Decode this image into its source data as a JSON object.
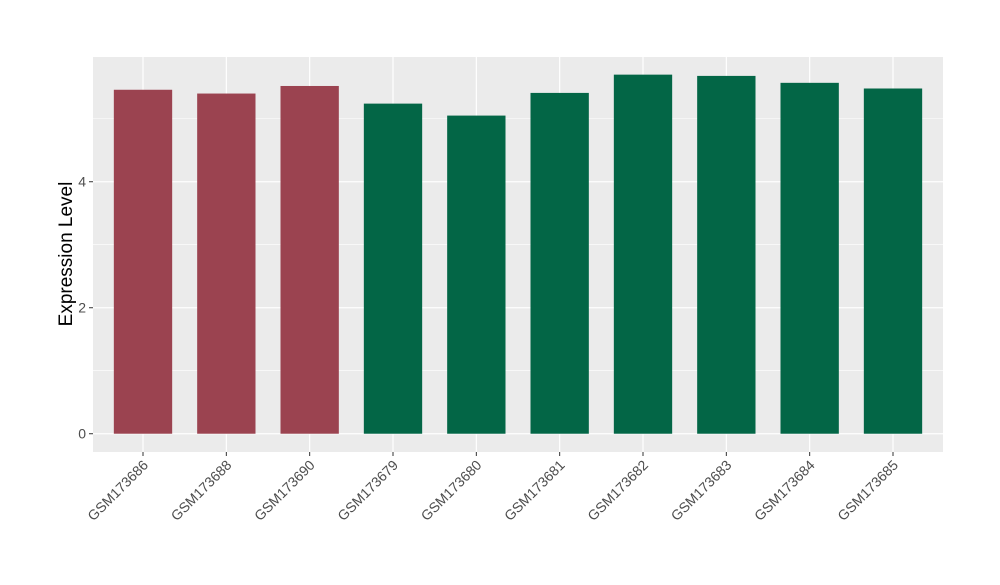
{
  "chart_data": {
    "type": "bar",
    "title": "",
    "xlabel": "",
    "ylabel": "Expression Level",
    "categories": [
      "GSM173686",
      "GSM173688",
      "GSM173690",
      "GSM173679",
      "GSM173680",
      "GSM173681",
      "GSM173682",
      "GSM173683",
      "GSM173684",
      "GSM173685"
    ],
    "values": [
      5.46,
      5.4,
      5.52,
      5.24,
      5.05,
      5.41,
      5.7,
      5.68,
      5.57,
      5.48
    ],
    "bar_colors": [
      "#9b4350",
      "#9b4350",
      "#9b4350",
      "#036646",
      "#036646",
      "#036646",
      "#036646",
      "#036646",
      "#036646",
      "#036646"
    ],
    "ylim": [
      -0.29,
      5.98
    ],
    "yticks": [
      0,
      2,
      4
    ],
    "ytick_labels": [
      "0",
      "2",
      "4"
    ],
    "grid": true,
    "panel_background": "#ebebeb",
    "legend": "none"
  }
}
